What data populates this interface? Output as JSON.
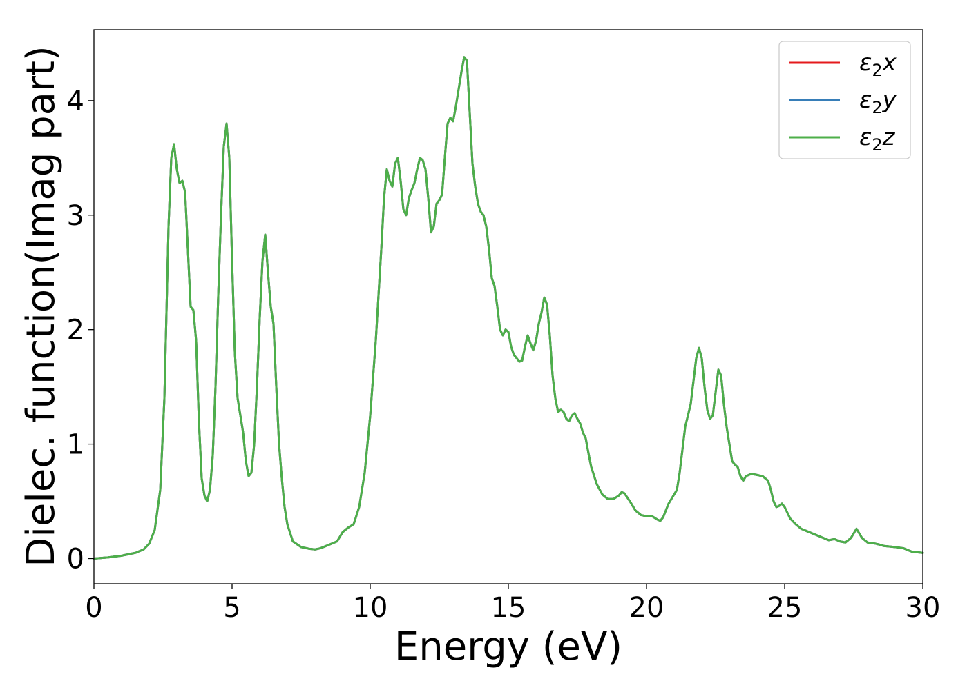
{
  "chart_data": {
    "type": "line",
    "title": "",
    "xlabel": "Energy (eV)",
    "ylabel": "Dielec. function(Imag part)",
    "xlim": [
      0,
      30
    ],
    "ylim": [
      -0.22,
      4.62
    ],
    "xticks": [
      0,
      5,
      10,
      15,
      20,
      25,
      30
    ],
    "yticks": [
      0,
      1,
      2,
      3,
      4
    ],
    "grid": false,
    "legend_position": "top-right",
    "series": [
      {
        "name": "ε2x",
        "legend_base": "ε",
        "legend_sub": "2",
        "legend_var": "x",
        "color": "#e41a1c"
      },
      {
        "name": "ε2y",
        "legend_base": "ε",
        "legend_sub": "2",
        "legend_var": "y",
        "color": "#377eb8"
      },
      {
        "name": "ε2z",
        "legend_base": "ε",
        "legend_sub": "2",
        "legend_var": "z",
        "color": "#4daf4a"
      }
    ],
    "curve": [
      [
        0.0,
        0.0
      ],
      [
        0.5,
        0.01
      ],
      [
        1.0,
        0.025
      ],
      [
        1.5,
        0.05
      ],
      [
        1.8,
        0.08
      ],
      [
        2.0,
        0.13
      ],
      [
        2.2,
        0.25
      ],
      [
        2.4,
        0.6
      ],
      [
        2.55,
        1.4
      ],
      [
        2.7,
        2.9
      ],
      [
        2.8,
        3.5
      ],
      [
        2.9,
        3.62
      ],
      [
        3.0,
        3.4
      ],
      [
        3.1,
        3.28
      ],
      [
        3.2,
        3.3
      ],
      [
        3.3,
        3.2
      ],
      [
        3.4,
        2.7
      ],
      [
        3.5,
        2.2
      ],
      [
        3.6,
        2.17
      ],
      [
        3.7,
        1.9
      ],
      [
        3.8,
        1.2
      ],
      [
        3.9,
        0.7
      ],
      [
        4.0,
        0.55
      ],
      [
        4.1,
        0.5
      ],
      [
        4.2,
        0.6
      ],
      [
        4.3,
        0.9
      ],
      [
        4.4,
        1.5
      ],
      [
        4.5,
        2.3
      ],
      [
        4.6,
        3.0
      ],
      [
        4.7,
        3.6
      ],
      [
        4.8,
        3.8
      ],
      [
        4.9,
        3.5
      ],
      [
        5.0,
        2.6
      ],
      [
        5.1,
        1.8
      ],
      [
        5.2,
        1.4
      ],
      [
        5.3,
        1.25
      ],
      [
        5.4,
        1.1
      ],
      [
        5.5,
        0.85
      ],
      [
        5.6,
        0.72
      ],
      [
        5.7,
        0.75
      ],
      [
        5.8,
        1.0
      ],
      [
        5.9,
        1.5
      ],
      [
        6.0,
        2.1
      ],
      [
        6.1,
        2.6
      ],
      [
        6.2,
        2.83
      ],
      [
        6.3,
        2.5
      ],
      [
        6.4,
        2.2
      ],
      [
        6.5,
        2.05
      ],
      [
        6.6,
        1.5
      ],
      [
        6.7,
        1.0
      ],
      [
        6.8,
        0.7
      ],
      [
        6.9,
        0.45
      ],
      [
        7.0,
        0.3
      ],
      [
        7.2,
        0.15
      ],
      [
        7.5,
        0.1
      ],
      [
        7.8,
        0.085
      ],
      [
        8.0,
        0.08
      ],
      [
        8.2,
        0.09
      ],
      [
        8.5,
        0.12
      ],
      [
        8.8,
        0.15
      ],
      [
        9.0,
        0.23
      ],
      [
        9.2,
        0.27
      ],
      [
        9.4,
        0.3
      ],
      [
        9.6,
        0.45
      ],
      [
        9.8,
        0.75
      ],
      [
        10.0,
        1.25
      ],
      [
        10.2,
        1.9
      ],
      [
        10.4,
        2.7
      ],
      [
        10.5,
        3.15
      ],
      [
        10.6,
        3.4
      ],
      [
        10.7,
        3.3
      ],
      [
        10.8,
        3.25
      ],
      [
        10.9,
        3.45
      ],
      [
        11.0,
        3.5
      ],
      [
        11.1,
        3.3
      ],
      [
        11.2,
        3.05
      ],
      [
        11.3,
        3.0
      ],
      [
        11.4,
        3.15
      ],
      [
        11.5,
        3.22
      ],
      [
        11.6,
        3.28
      ],
      [
        11.7,
        3.4
      ],
      [
        11.8,
        3.5
      ],
      [
        11.9,
        3.48
      ],
      [
        12.0,
        3.4
      ],
      [
        12.1,
        3.15
      ],
      [
        12.2,
        2.85
      ],
      [
        12.3,
        2.9
      ],
      [
        12.4,
        3.1
      ],
      [
        12.5,
        3.13
      ],
      [
        12.6,
        3.18
      ],
      [
        12.7,
        3.5
      ],
      [
        12.8,
        3.8
      ],
      [
        12.9,
        3.85
      ],
      [
        13.0,
        3.82
      ],
      [
        13.1,
        3.95
      ],
      [
        13.2,
        4.1
      ],
      [
        13.3,
        4.25
      ],
      [
        13.4,
        4.38
      ],
      [
        13.5,
        4.35
      ],
      [
        13.6,
        3.9
      ],
      [
        13.7,
        3.45
      ],
      [
        13.8,
        3.25
      ],
      [
        13.9,
        3.1
      ],
      [
        14.0,
        3.03
      ],
      [
        14.1,
        3.0
      ],
      [
        14.2,
        2.9
      ],
      [
        14.3,
        2.7
      ],
      [
        14.4,
        2.45
      ],
      [
        14.5,
        2.38
      ],
      [
        14.6,
        2.2
      ],
      [
        14.7,
        2.0
      ],
      [
        14.8,
        1.95
      ],
      [
        14.9,
        2.0
      ],
      [
        15.0,
        1.98
      ],
      [
        15.1,
        1.85
      ],
      [
        15.2,
        1.78
      ],
      [
        15.3,
        1.75
      ],
      [
        15.4,
        1.72
      ],
      [
        15.5,
        1.73
      ],
      [
        15.6,
        1.85
      ],
      [
        15.7,
        1.95
      ],
      [
        15.8,
        1.88
      ],
      [
        15.9,
        1.82
      ],
      [
        16.0,
        1.9
      ],
      [
        16.1,
        2.05
      ],
      [
        16.2,
        2.15
      ],
      [
        16.3,
        2.28
      ],
      [
        16.4,
        2.22
      ],
      [
        16.5,
        1.95
      ],
      [
        16.6,
        1.6
      ],
      [
        16.7,
        1.4
      ],
      [
        16.8,
        1.28
      ],
      [
        16.9,
        1.3
      ],
      [
        17.0,
        1.28
      ],
      [
        17.1,
        1.22
      ],
      [
        17.2,
        1.2
      ],
      [
        17.3,
        1.25
      ],
      [
        17.4,
        1.27
      ],
      [
        17.5,
        1.22
      ],
      [
        17.6,
        1.18
      ],
      [
        17.7,
        1.1
      ],
      [
        17.8,
        1.05
      ],
      [
        17.9,
        0.92
      ],
      [
        18.0,
        0.8
      ],
      [
        18.2,
        0.65
      ],
      [
        18.4,
        0.56
      ],
      [
        18.6,
        0.52
      ],
      [
        18.8,
        0.52
      ],
      [
        19.0,
        0.55
      ],
      [
        19.1,
        0.58
      ],
      [
        19.2,
        0.57
      ],
      [
        19.4,
        0.5
      ],
      [
        19.6,
        0.42
      ],
      [
        19.8,
        0.38
      ],
      [
        20.0,
        0.37
      ],
      [
        20.2,
        0.37
      ],
      [
        20.4,
        0.34
      ],
      [
        20.5,
        0.33
      ],
      [
        20.6,
        0.36
      ],
      [
        20.8,
        0.48
      ],
      [
        21.0,
        0.56
      ],
      [
        21.1,
        0.6
      ],
      [
        21.2,
        0.75
      ],
      [
        21.3,
        0.95
      ],
      [
        21.4,
        1.15
      ],
      [
        21.5,
        1.25
      ],
      [
        21.6,
        1.35
      ],
      [
        21.7,
        1.55
      ],
      [
        21.8,
        1.75
      ],
      [
        21.9,
        1.84
      ],
      [
        22.0,
        1.75
      ],
      [
        22.1,
        1.5
      ],
      [
        22.2,
        1.3
      ],
      [
        22.3,
        1.22
      ],
      [
        22.4,
        1.25
      ],
      [
        22.5,
        1.45
      ],
      [
        22.6,
        1.65
      ],
      [
        22.7,
        1.6
      ],
      [
        22.8,
        1.35
      ],
      [
        22.9,
        1.15
      ],
      [
        23.0,
        1.0
      ],
      [
        23.1,
        0.85
      ],
      [
        23.2,
        0.82
      ],
      [
        23.3,
        0.8
      ],
      [
        23.4,
        0.72
      ],
      [
        23.5,
        0.68
      ],
      [
        23.6,
        0.72
      ],
      [
        23.8,
        0.74
      ],
      [
        24.0,
        0.73
      ],
      [
        24.2,
        0.72
      ],
      [
        24.4,
        0.68
      ],
      [
        24.5,
        0.6
      ],
      [
        24.6,
        0.5
      ],
      [
        24.7,
        0.45
      ],
      [
        24.8,
        0.46
      ],
      [
        24.9,
        0.48
      ],
      [
        25.0,
        0.45
      ],
      [
        25.2,
        0.35
      ],
      [
        25.4,
        0.3
      ],
      [
        25.6,
        0.26
      ],
      [
        25.8,
        0.24
      ],
      [
        26.0,
        0.22
      ],
      [
        26.2,
        0.2
      ],
      [
        26.4,
        0.18
      ],
      [
        26.6,
        0.16
      ],
      [
        26.8,
        0.17
      ],
      [
        27.0,
        0.15
      ],
      [
        27.2,
        0.14
      ],
      [
        27.4,
        0.18
      ],
      [
        27.6,
        0.26
      ],
      [
        27.8,
        0.18
      ],
      [
        28.0,
        0.14
      ],
      [
        28.3,
        0.13
      ],
      [
        28.6,
        0.11
      ],
      [
        29.0,
        0.1
      ],
      [
        29.3,
        0.09
      ],
      [
        29.6,
        0.06
      ],
      [
        30.0,
        0.05
      ]
    ]
  }
}
